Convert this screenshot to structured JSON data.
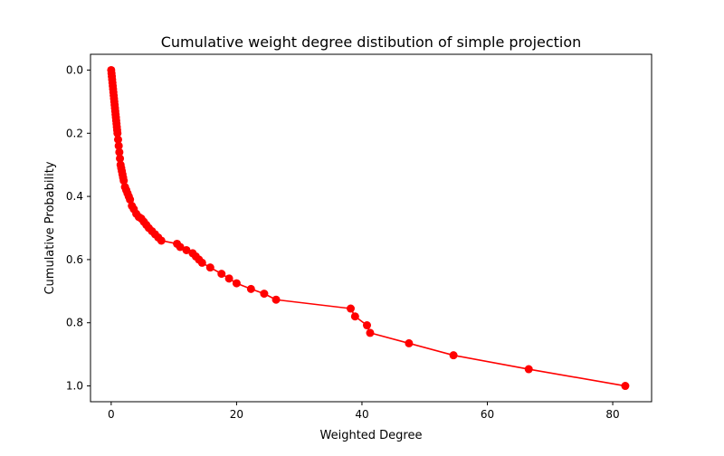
{
  "chart_data": {
    "type": "line",
    "title": "Cumulative weight degree distibution of simple projection",
    "xlabel": "Weighted Degree",
    "ylabel": "Cumulative Probability",
    "xlim": [
      -3.3,
      86.2
    ],
    "ylim": [
      -0.05,
      1.05
    ],
    "y_inverted": true,
    "grid": false,
    "legend": "none",
    "x_ticks": [
      0,
      20,
      40,
      60,
      80
    ],
    "x_tick_labels": [
      "0",
      "20",
      "40",
      "60",
      "80"
    ],
    "y_ticks": [
      0.0,
      0.2,
      0.4,
      0.6,
      0.8,
      1.0
    ],
    "y_tick_labels": [
      "0.0",
      "0.2",
      "0.4",
      "0.6",
      "0.8",
      "1.0"
    ],
    "series": [
      {
        "color": "#ff0000",
        "marker": "circle",
        "x": [
          0.0,
          0.05,
          0.1,
          0.15,
          0.2,
          0.25,
          0.3,
          0.35,
          0.4,
          0.45,
          0.5,
          0.55,
          0.6,
          0.65,
          0.7,
          0.75,
          0.8,
          0.85,
          0.9,
          0.95,
          1.0,
          1.1,
          1.2,
          1.3,
          1.4,
          1.5,
          1.6,
          1.7,
          1.8,
          1.9,
          2.0,
          2.2,
          2.4,
          2.6,
          2.8,
          3.0,
          3.3,
          3.6,
          4.0,
          4.4,
          4.8,
          5.2,
          5.6,
          6.0,
          6.5,
          7.0,
          7.5,
          8.0,
          10.5,
          11.0,
          12.0,
          13.0,
          13.5,
          14.0,
          14.5,
          15.8,
          17.6,
          18.8,
          20.0,
          22.3,
          24.4,
          26.3,
          38.2,
          38.9,
          40.8,
          41.3,
          47.5,
          54.6,
          66.6,
          82.0
        ],
        "y": [
          0.0,
          0.01,
          0.02,
          0.03,
          0.04,
          0.05,
          0.06,
          0.07,
          0.08,
          0.09,
          0.1,
          0.11,
          0.12,
          0.13,
          0.14,
          0.15,
          0.16,
          0.17,
          0.18,
          0.19,
          0.2,
          0.22,
          0.24,
          0.26,
          0.28,
          0.3,
          0.31,
          0.32,
          0.33,
          0.34,
          0.35,
          0.37,
          0.38,
          0.39,
          0.4,
          0.41,
          0.43,
          0.44,
          0.455,
          0.465,
          0.47,
          0.48,
          0.49,
          0.5,
          0.51,
          0.52,
          0.53,
          0.54,
          0.55,
          0.56,
          0.57,
          0.58,
          0.59,
          0.6,
          0.61,
          0.625,
          0.645,
          0.66,
          0.675,
          0.693,
          0.708,
          0.727,
          0.755,
          0.78,
          0.808,
          0.832,
          0.865,
          0.903,
          0.947,
          1.0
        ]
      }
    ]
  }
}
